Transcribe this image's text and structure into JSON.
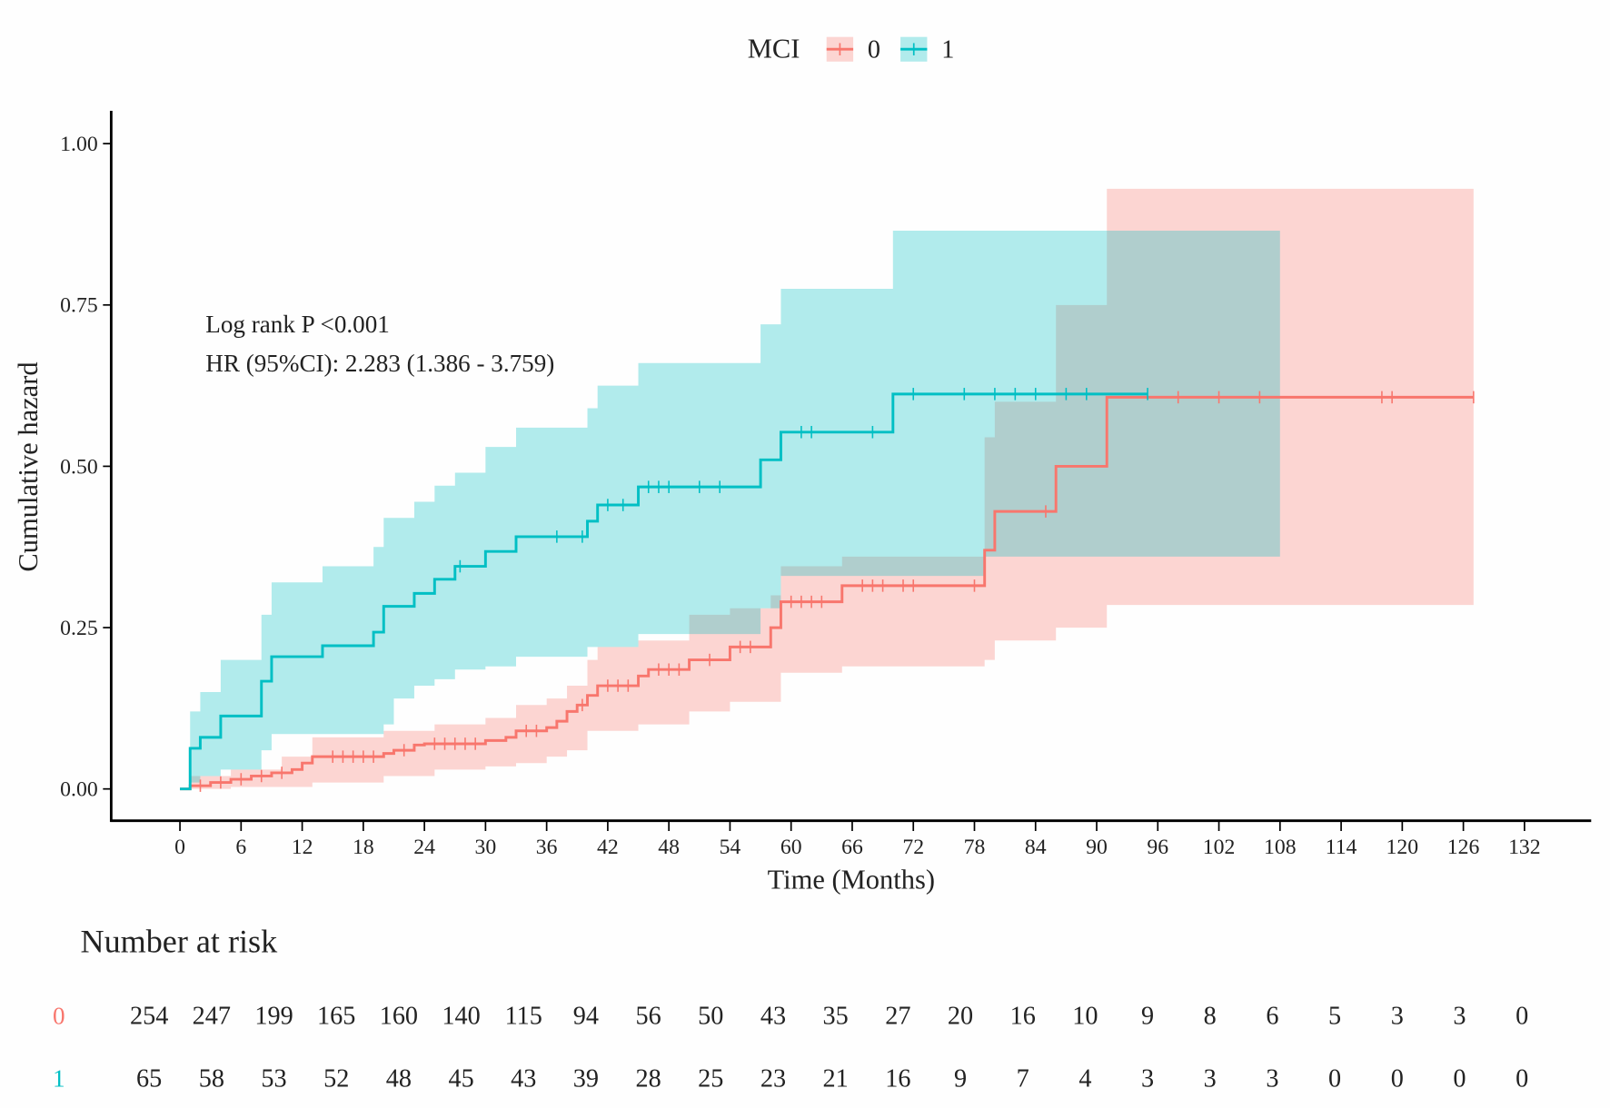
{
  "chart_data": {
    "type": "line",
    "subtype": "cumulative-hazard-step",
    "xlabel": "Time (Months)",
    "ylabel": "Cumulative hazard",
    "xlim": [
      0,
      132
    ],
    "ylim": [
      0,
      1
    ],
    "xticks": [
      0,
      6,
      12,
      18,
      24,
      30,
      36,
      42,
      48,
      54,
      60,
      66,
      72,
      78,
      84,
      90,
      96,
      102,
      108,
      114,
      120,
      126,
      132
    ],
    "yticks": [
      0,
      0.25,
      0.5,
      0.75,
      1.0
    ],
    "ytick_labels": [
      "0.00",
      "0.25",
      "0.50",
      "0.75",
      "1.00"
    ],
    "legend": {
      "title": "MCI",
      "placement": "top",
      "entries": [
        "0",
        "1"
      ]
    },
    "annotations": [
      "Log rank P <0.001",
      "HR (95%CI): 2.283 (1.386 - 3.759)"
    ],
    "series": [
      {
        "name": "0",
        "color": "#F8766D",
        "steps": [
          [
            0,
            0
          ],
          [
            1,
            0.005
          ],
          [
            3,
            0.01
          ],
          [
            5,
            0.015
          ],
          [
            7,
            0.02
          ],
          [
            9,
            0.025
          ],
          [
            11,
            0.03
          ],
          [
            12,
            0.04
          ],
          [
            13,
            0.05
          ],
          [
            20,
            0.055
          ],
          [
            21,
            0.06
          ],
          [
            23,
            0.068
          ],
          [
            24,
            0.07
          ],
          [
            30,
            0.075
          ],
          [
            32,
            0.08
          ],
          [
            33,
            0.09
          ],
          [
            36,
            0.095
          ],
          [
            37,
            0.105
          ],
          [
            38,
            0.12
          ],
          [
            39,
            0.13
          ],
          [
            40,
            0.145
          ],
          [
            41,
            0.16
          ],
          [
            45,
            0.175
          ],
          [
            46,
            0.185
          ],
          [
            50,
            0.2
          ],
          [
            54,
            0.22
          ],
          [
            58,
            0.25
          ],
          [
            59,
            0.29
          ],
          [
            65,
            0.315
          ],
          [
            79,
            0.37
          ],
          [
            80,
            0.43
          ],
          [
            86,
            0.5
          ],
          [
            91,
            0.607
          ]
        ],
        "end": 127,
        "upper": [
          [
            0,
            0
          ],
          [
            1,
            0.02
          ],
          [
            5,
            0.03
          ],
          [
            10,
            0.05
          ],
          [
            13,
            0.08
          ],
          [
            20,
            0.09
          ],
          [
            25,
            0.1
          ],
          [
            30,
            0.11
          ],
          [
            33,
            0.13
          ],
          [
            36,
            0.14
          ],
          [
            38,
            0.16
          ],
          [
            40,
            0.2
          ],
          [
            41,
            0.22
          ],
          [
            45,
            0.23
          ],
          [
            50,
            0.27
          ],
          [
            54,
            0.28
          ],
          [
            58,
            0.3
          ],
          [
            59,
            0.345
          ],
          [
            65,
            0.36
          ],
          [
            79,
            0.545
          ],
          [
            80,
            0.6
          ],
          [
            86,
            0.75
          ],
          [
            91,
            0.93
          ]
        ],
        "lower": [
          [
            0,
            0
          ],
          [
            5,
            0.003
          ],
          [
            13,
            0.01
          ],
          [
            20,
            0.02
          ],
          [
            25,
            0.03
          ],
          [
            30,
            0.035
          ],
          [
            33,
            0.04
          ],
          [
            36,
            0.05
          ],
          [
            38,
            0.06
          ],
          [
            40,
            0.09
          ],
          [
            45,
            0.1
          ],
          [
            50,
            0.12
          ],
          [
            54,
            0.135
          ],
          [
            59,
            0.18
          ],
          [
            65,
            0.19
          ],
          [
            79,
            0.2
          ],
          [
            80,
            0.23
          ],
          [
            86,
            0.25
          ],
          [
            91,
            0.285
          ]
        ],
        "censored": [
          2,
          4,
          6,
          8,
          10,
          15,
          16,
          17,
          18,
          19,
          22,
          25,
          26,
          27,
          28,
          29,
          34,
          35,
          39.5,
          42,
          43,
          44,
          47,
          48,
          49,
          52,
          55,
          56,
          60,
          61,
          62,
          63,
          67,
          68,
          69,
          71,
          72,
          78,
          85,
          98,
          102,
          106,
          118,
          119,
          127
        ]
      },
      {
        "name": "1",
        "color": "#00BFC4",
        "steps": [
          [
            0,
            0
          ],
          [
            1,
            0.063
          ],
          [
            2,
            0.08
          ],
          [
            4,
            0.113
          ],
          [
            8,
            0.167
          ],
          [
            9,
            0.205
          ],
          [
            14,
            0.222
          ],
          [
            19,
            0.243
          ],
          [
            20,
            0.283
          ],
          [
            23,
            0.303
          ],
          [
            25,
            0.325
          ],
          [
            27,
            0.345
          ],
          [
            30,
            0.368
          ],
          [
            33,
            0.391
          ],
          [
            40,
            0.415
          ],
          [
            41,
            0.44
          ],
          [
            45,
            0.468
          ],
          [
            57,
            0.51
          ],
          [
            59,
            0.553
          ],
          [
            70,
            0.612
          ]
        ],
        "end": 95,
        "upper": [
          [
            0,
            0
          ],
          [
            1,
            0.12
          ],
          [
            2,
            0.15
          ],
          [
            4,
            0.2
          ],
          [
            8,
            0.27
          ],
          [
            9,
            0.32
          ],
          [
            14,
            0.345
          ],
          [
            19,
            0.375
          ],
          [
            20,
            0.42
          ],
          [
            23,
            0.445
          ],
          [
            25,
            0.47
          ],
          [
            27,
            0.49
          ],
          [
            30,
            0.53
          ],
          [
            33,
            0.56
          ],
          [
            40,
            0.59
          ],
          [
            41,
            0.625
          ],
          [
            45,
            0.66
          ],
          [
            57,
            0.72
          ],
          [
            59,
            0.775
          ],
          [
            70,
            0.865
          ]
        ],
        "upper_end": 108,
        "lower": [
          [
            0,
            0
          ],
          [
            1,
            0.01
          ],
          [
            2,
            0.02
          ],
          [
            4,
            0.03
          ],
          [
            8,
            0.06
          ],
          [
            9,
            0.085
          ],
          [
            20,
            0.1
          ],
          [
            21,
            0.14
          ],
          [
            23,
            0.16
          ],
          [
            25,
            0.17
          ],
          [
            27,
            0.185
          ],
          [
            30,
            0.19
          ],
          [
            33,
            0.205
          ],
          [
            40,
            0.22
          ],
          [
            45,
            0.24
          ],
          [
            57,
            0.28
          ],
          [
            59,
            0.33
          ],
          [
            79,
            0.36
          ]
        ],
        "censored": [
          27.5,
          37,
          39.5,
          42,
          43.5,
          46,
          47,
          48,
          51,
          53,
          61,
          62,
          68,
          72,
          77,
          80,
          82,
          84,
          87,
          89,
          95
        ]
      }
    ],
    "risk_table": {
      "title": "Number at risk",
      "rows": [
        {
          "group": "0",
          "values": [
            "254",
            "247",
            "199",
            "165",
            "160",
            "140",
            "115",
            "94",
            "56",
            "50",
            "43",
            "35",
            "27",
            "20",
            "16",
            "10",
            "9",
            "8",
            "6",
            "5",
            "3",
            "3",
            "0"
          ]
        },
        {
          "group": "1",
          "values": [
            "65",
            "58",
            "53",
            "52",
            "48",
            "45",
            "43",
            "39",
            "28",
            "25",
            "23",
            "21",
            "16",
            "9",
            "7",
            "4",
            "3",
            "3",
            "3",
            "0",
            "0",
            "0",
            "0"
          ]
        }
      ]
    }
  }
}
